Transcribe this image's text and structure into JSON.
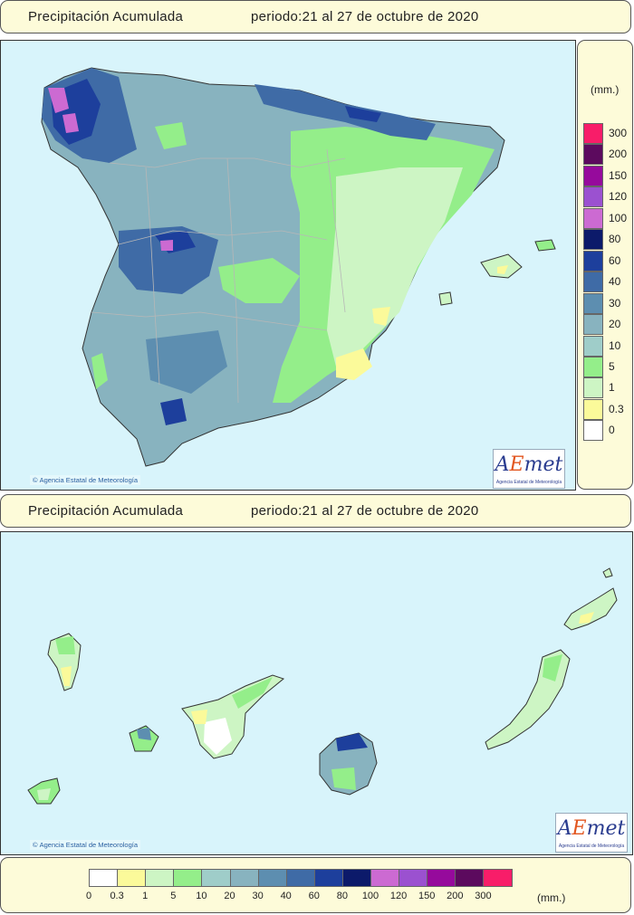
{
  "header_top": {
    "title": "Precipitación Acumulada",
    "period": "periodo:21 al 27 de octubre de 2020"
  },
  "header_canarias": {
    "title": "Precipitación Acumulada",
    "period": "periodo:21 al 27 de octubre de 2020"
  },
  "credit": "Agencia Estatal de Meteorología",
  "logo": {
    "text_a": "A",
    "text_e": "E",
    "text_rest": "met",
    "subtitle": "Agencia Estatal de Meteorología"
  },
  "legend": {
    "unit": "(mm.)",
    "levels": [
      {
        "label": "0",
        "color": "#ffffff"
      },
      {
        "label": "0.3",
        "color": "#fbfa9a"
      },
      {
        "label": "1",
        "color": "#cdf5c4"
      },
      {
        "label": "5",
        "color": "#94ee8a"
      },
      {
        "label": "10",
        "color": "#9fcdc9"
      },
      {
        "label": "20",
        "color": "#88b3bf"
      },
      {
        "label": "30",
        "color": "#5d8eb0"
      },
      {
        "label": "40",
        "color": "#3f6ba6"
      },
      {
        "label": "60",
        "color": "#1d3f9c"
      },
      {
        "label": "80",
        "color": "#0c1a6a"
      },
      {
        "label": "100",
        "color": "#cc6ad2"
      },
      {
        "label": "120",
        "color": "#9b51d0"
      },
      {
        "label": "150",
        "color": "#960a9c"
      },
      {
        "label": "200",
        "color": "#5c0a5e"
      },
      {
        "label": "300",
        "color": "#f81d69"
      }
    ]
  }
}
